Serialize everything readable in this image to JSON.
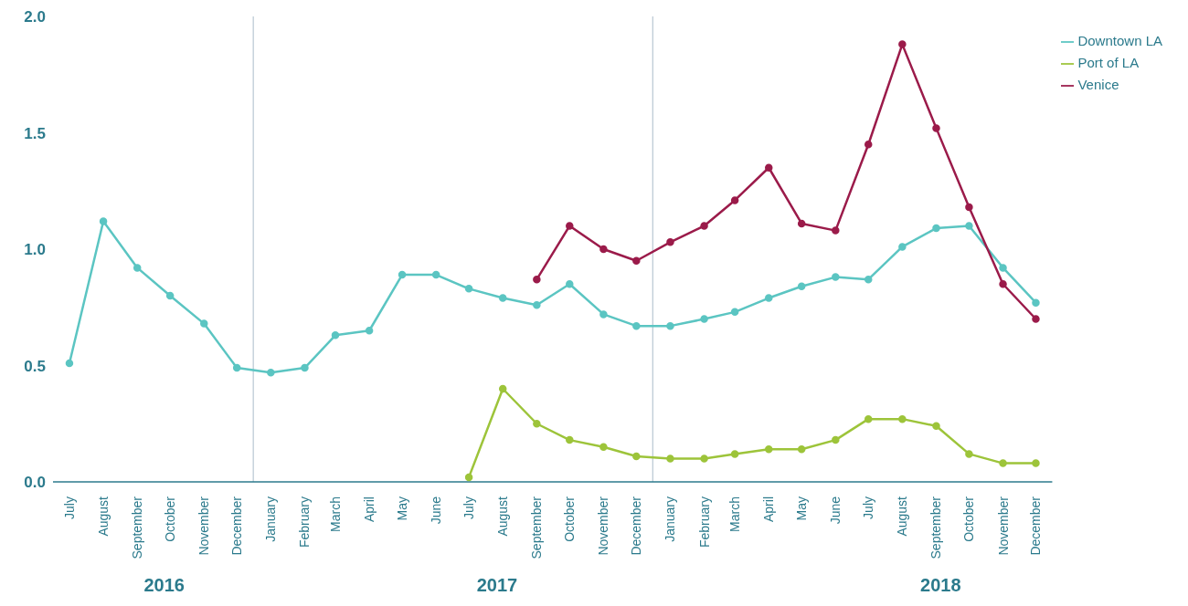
{
  "chart_data": {
    "type": "line",
    "x": [
      "2016-07",
      "2016-08",
      "2016-09",
      "2016-10",
      "2016-11",
      "2016-12",
      "2017-01",
      "2017-02",
      "2017-03",
      "2017-04",
      "2017-05",
      "2017-06",
      "2017-07",
      "2017-08",
      "2017-09",
      "2017-10",
      "2017-11",
      "2017-12",
      "2018-01",
      "2018-02",
      "2018-03",
      "2018-04",
      "2018-05",
      "2018-06",
      "2018-07",
      "2018-08",
      "2018-09",
      "2018-10",
      "2018-11",
      "2018-12"
    ],
    "xlim": [
      "2016-06-16",
      "2018-12-16"
    ],
    "xticks": [
      {
        "value": "2016-07",
        "label": "July"
      },
      {
        "value": "2016-08",
        "label": "August"
      },
      {
        "value": "2016-09",
        "label": "September"
      },
      {
        "value": "2016-10",
        "label": "October"
      },
      {
        "value": "2016-11",
        "label": "November"
      },
      {
        "value": "2016-12",
        "label": "December"
      },
      {
        "value": "2017-01",
        "label": "January"
      },
      {
        "value": "2017-02",
        "label": "February"
      },
      {
        "value": "2017-03",
        "label": "March"
      },
      {
        "value": "2017-04",
        "label": "April"
      },
      {
        "value": "2017-05",
        "label": "May"
      },
      {
        "value": "2017-06",
        "label": "June"
      },
      {
        "value": "2017-07",
        "label": "July"
      },
      {
        "value": "2017-08",
        "label": "August"
      },
      {
        "value": "2017-09",
        "label": "September"
      },
      {
        "value": "2017-10",
        "label": "October"
      },
      {
        "value": "2017-11",
        "label": "November"
      },
      {
        "value": "2017-12",
        "label": "December"
      },
      {
        "value": "2018-01",
        "label": "January"
      },
      {
        "value": "2018-02",
        "label": "February"
      },
      {
        "value": "2018-03",
        "label": "March"
      },
      {
        "value": "2018-04",
        "label": "April"
      },
      {
        "value": "2018-05",
        "label": "May"
      },
      {
        "value": "2018-06",
        "label": "June"
      },
      {
        "value": "2018-07",
        "label": "July"
      },
      {
        "value": "2018-08",
        "label": "August"
      },
      {
        "value": "2018-09",
        "label": "September"
      },
      {
        "value": "2018-10",
        "label": "October"
      },
      {
        "value": "2018-11",
        "label": "November"
      },
      {
        "value": "2018-12",
        "label": "December"
      }
    ],
    "ylim": [
      0,
      2
    ],
    "yticks": [
      {
        "value": 0,
        "label": "0.0"
      },
      {
        "value": 0.5,
        "label": "0.5"
      },
      {
        "value": 1,
        "label": "1.0"
      },
      {
        "value": 1.5,
        "label": "1.5"
      },
      {
        "value": 2,
        "label": "2.0"
      }
    ],
    "series": [
      {
        "name": "Downtown LA",
        "color": "#5bc5c2",
        "values": [
          0.51,
          1.12,
          0.92,
          0.8,
          0.68,
          0.49,
          0.47,
          0.49,
          0.63,
          0.65,
          0.89,
          0.89,
          0.83,
          0.79,
          0.76,
          0.85,
          0.72,
          0.67,
          0.67,
          0.7,
          0.73,
          0.79,
          0.84,
          0.88,
          0.87,
          1.01,
          1.09,
          1.1,
          0.92,
          0.77
        ]
      },
      {
        "name": "Port of LA",
        "color": "#9dc43a",
        "values": [
          null,
          null,
          null,
          null,
          null,
          null,
          null,
          null,
          null,
          null,
          null,
          null,
          0.02,
          0.4,
          0.25,
          0.18,
          0.15,
          0.11,
          0.1,
          0.1,
          0.12,
          0.14,
          0.14,
          0.18,
          0.27,
          0.27,
          0.24,
          0.12,
          0.08,
          0.08
        ]
      },
      {
        "name": "Venice",
        "color": "#9b1b4a",
        "values": [
          null,
          null,
          null,
          null,
          null,
          null,
          null,
          null,
          null,
          null,
          null,
          null,
          null,
          null,
          0.87,
          1.1,
          1.0,
          0.95,
          1.03,
          1.1,
          1.21,
          1.35,
          1.11,
          1.08,
          1.45,
          1.88,
          1.52,
          1.18,
          0.85,
          0.7
        ]
      }
    ],
    "ref_lines": [
      {
        "axis": "x",
        "value": "2016-12-16",
        "color": "#b8c7d3"
      },
      {
        "axis": "x",
        "value": "2017-12-16",
        "color": "#b8c7d3"
      }
    ],
    "annotations": [
      "2016",
      "2017",
      "2018"
    ],
    "grid": false,
    "legend": "top right",
    "marker": "circle",
    "line_style": "solid"
  }
}
